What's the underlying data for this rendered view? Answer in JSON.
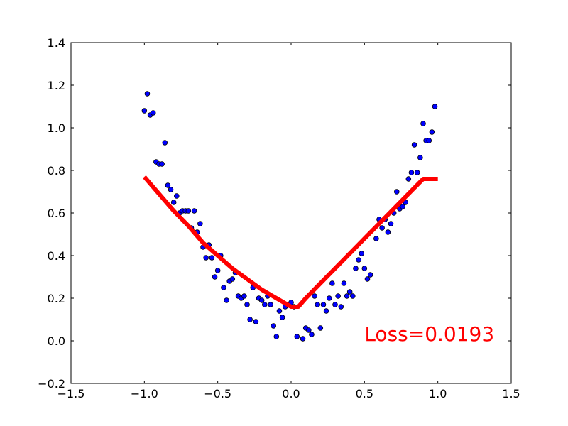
{
  "chart_data": {
    "type": "scatter",
    "title": "",
    "xlabel": "",
    "ylabel": "",
    "xlim": [
      -1.5,
      1.5
    ],
    "ylim": [
      -0.2,
      1.4
    ],
    "xticks": [
      -1.5,
      -1.0,
      -0.5,
      0.0,
      0.5,
      1.0,
      1.5
    ],
    "xtick_labels": [
      "−1.5",
      "−1.0",
      "−0.5",
      "0.0",
      "0.5",
      "1.0",
      "1.5"
    ],
    "yticks": [
      -0.2,
      0.0,
      0.2,
      0.4,
      0.6,
      0.8,
      1.0,
      1.2,
      1.4
    ],
    "ytick_labels": [
      "−0.2",
      "0.0",
      "0.2",
      "0.4",
      "0.6",
      "0.8",
      "1.0",
      "1.2",
      "1.4"
    ],
    "grid": false,
    "annotation": {
      "text": "Loss=0.0193",
      "x": 0.5,
      "y": 0.0,
      "color": "#ff0000"
    },
    "series": [
      {
        "type": "scatter",
        "color": "#0000ff",
        "points": [
          [
            -1.0,
            1.08
          ],
          [
            -0.98,
            1.16
          ],
          [
            -0.96,
            1.06
          ],
          [
            -0.94,
            1.07
          ],
          [
            -0.92,
            0.84
          ],
          [
            -0.9,
            0.83
          ],
          [
            -0.88,
            0.83
          ],
          [
            -0.86,
            0.93
          ],
          [
            -0.84,
            0.73
          ],
          [
            -0.82,
            0.71
          ],
          [
            -0.8,
            0.65
          ],
          [
            -0.78,
            0.68
          ],
          [
            -0.76,
            0.6
          ],
          [
            -0.74,
            0.61
          ],
          [
            -0.72,
            0.61
          ],
          [
            -0.7,
            0.61
          ],
          [
            -0.68,
            0.53
          ],
          [
            -0.66,
            0.61
          ],
          [
            -0.64,
            0.51
          ],
          [
            -0.62,
            0.55
          ],
          [
            -0.6,
            0.44
          ],
          [
            -0.58,
            0.39
          ],
          [
            -0.56,
            0.45
          ],
          [
            -0.54,
            0.39
          ],
          [
            -0.52,
            0.3
          ],
          [
            -0.5,
            0.33
          ],
          [
            -0.48,
            0.4
          ],
          [
            -0.46,
            0.25
          ],
          [
            -0.44,
            0.19
          ],
          [
            -0.42,
            0.28
          ],
          [
            -0.4,
            0.29
          ],
          [
            -0.38,
            0.32
          ],
          [
            -0.36,
            0.21
          ],
          [
            -0.34,
            0.2
          ],
          [
            -0.32,
            0.21
          ],
          [
            -0.3,
            0.17
          ],
          [
            -0.28,
            0.1
          ],
          [
            -0.26,
            0.25
          ],
          [
            -0.24,
            0.09
          ],
          [
            -0.22,
            0.2
          ],
          [
            -0.2,
            0.19
          ],
          [
            -0.18,
            0.17
          ],
          [
            -0.16,
            0.21
          ],
          [
            -0.14,
            0.17
          ],
          [
            -0.12,
            0.07
          ],
          [
            -0.1,
            0.02
          ],
          [
            -0.08,
            0.14
          ],
          [
            -0.06,
            0.11
          ],
          [
            -0.04,
            0.16
          ],
          [
            -0.02,
            0.17
          ],
          [
            0.0,
            0.18
          ],
          [
            0.02,
            0.16
          ],
          [
            0.04,
            0.02
          ],
          [
            0.08,
            0.01
          ],
          [
            0.1,
            0.06
          ],
          [
            0.12,
            0.05
          ],
          [
            0.14,
            0.03
          ],
          [
            0.16,
            0.21
          ],
          [
            0.18,
            0.17
          ],
          [
            0.2,
            0.06
          ],
          [
            0.22,
            0.17
          ],
          [
            0.24,
            0.14
          ],
          [
            0.26,
            0.2
          ],
          [
            0.28,
            0.27
          ],
          [
            0.3,
            0.17
          ],
          [
            0.32,
            0.21
          ],
          [
            0.34,
            0.16
          ],
          [
            0.36,
            0.27
          ],
          [
            0.38,
            0.21
          ],
          [
            0.4,
            0.23
          ],
          [
            0.42,
            0.21
          ],
          [
            0.44,
            0.34
          ],
          [
            0.46,
            0.38
          ],
          [
            0.48,
            0.41
          ],
          [
            0.5,
            0.34
          ],
          [
            0.52,
            0.29
          ],
          [
            0.54,
            0.31
          ],
          [
            0.58,
            0.48
          ],
          [
            0.6,
            0.57
          ],
          [
            0.62,
            0.53
          ],
          [
            0.64,
            0.57
          ],
          [
            0.66,
            0.51
          ],
          [
            0.68,
            0.55
          ],
          [
            0.7,
            0.6
          ],
          [
            0.72,
            0.7
          ],
          [
            0.74,
            0.62
          ],
          [
            0.76,
            0.63
          ],
          [
            0.78,
            0.65
          ],
          [
            0.8,
            0.76
          ],
          [
            0.82,
            0.79
          ],
          [
            0.84,
            0.92
          ],
          [
            0.86,
            0.79
          ],
          [
            0.88,
            0.86
          ],
          [
            0.9,
            1.02
          ],
          [
            0.92,
            0.94
          ],
          [
            0.94,
            0.94
          ],
          [
            0.96,
            0.98
          ],
          [
            0.98,
            1.1
          ]
        ]
      },
      {
        "type": "line",
        "color": "#ff0000",
        "points": [
          [
            -1.0,
            0.77
          ],
          [
            -0.9,
            0.69
          ],
          [
            -0.8,
            0.61
          ],
          [
            -0.7,
            0.54
          ],
          [
            -0.6,
            0.46
          ],
          [
            -0.5,
            0.4
          ],
          [
            -0.4,
            0.34
          ],
          [
            -0.3,
            0.29
          ],
          [
            -0.2,
            0.24
          ],
          [
            -0.1,
            0.2
          ],
          [
            0.0,
            0.16
          ],
          [
            0.05,
            0.16
          ],
          [
            0.1,
            0.2
          ],
          [
            0.2,
            0.27
          ],
          [
            0.3,
            0.34
          ],
          [
            0.4,
            0.41
          ],
          [
            0.5,
            0.48
          ],
          [
            0.6,
            0.55
          ],
          [
            0.7,
            0.62
          ],
          [
            0.8,
            0.69
          ],
          [
            0.9,
            0.76
          ],
          [
            1.0,
            0.76
          ]
        ]
      }
    ]
  }
}
